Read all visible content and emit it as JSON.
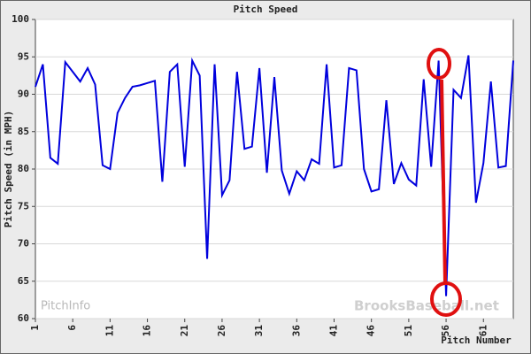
{
  "chart_data": {
    "type": "line",
    "title": "Pitch Speed",
    "x_label": "Pitch Number",
    "y_label": "Pitch Speed (in MPH)",
    "watermarks": [
      "PitchInfo",
      "BrooksBaseball.net"
    ],
    "x": [
      1,
      2,
      3,
      4,
      5,
      6,
      7,
      8,
      9,
      10,
      11,
      12,
      13,
      14,
      15,
      16,
      17,
      18,
      19,
      20,
      21,
      22,
      23,
      24,
      25,
      26,
      27,
      28,
      29,
      30,
      31,
      32,
      33,
      34,
      35,
      36,
      37,
      38,
      39,
      40,
      41,
      42,
      43,
      44,
      45,
      46,
      47,
      48,
      49,
      50,
      51,
      52,
      53,
      54,
      55,
      56,
      57,
      58,
      59,
      60,
      61,
      62,
      63,
      64,
      65
    ],
    "series": [
      {
        "name": "Pitch Speed",
        "color": "#0000dd",
        "values": [
          91,
          94,
          81.5,
          80.7,
          94.3,
          93,
          91.7,
          93.5,
          91.3,
          80.5,
          80,
          87.5,
          89.5,
          91,
          91.2,
          91.5,
          91.8,
          78.3,
          93,
          94,
          80.3,
          94.5,
          92.5,
          68,
          94,
          76.5,
          78.5,
          93,
          82.7,
          83,
          93.5,
          79.5,
          92.3,
          79.8,
          76.7,
          79.7,
          78.5,
          81.3,
          80.7,
          94,
          80.2,
          80.5,
          93.5,
          93.2,
          80,
          77,
          77.3,
          89.2,
          78,
          80.8,
          78.6,
          77.8,
          92,
          80.3,
          94.5,
          63,
          90.6,
          89.5,
          95.2,
          75.5,
          80.8,
          91.7,
          80.2,
          80.4,
          94.5
        ]
      }
    ],
    "xlim": [
      1,
      65
    ],
    "xticks": [
      1,
      6,
      11,
      16,
      21,
      26,
      31,
      36,
      41,
      46,
      51,
      56,
      61
    ],
    "ylim": [
      60,
      100
    ],
    "yticks": [
      60,
      65,
      70,
      75,
      80,
      85,
      90,
      95,
      100
    ],
    "grid": true
  }
}
